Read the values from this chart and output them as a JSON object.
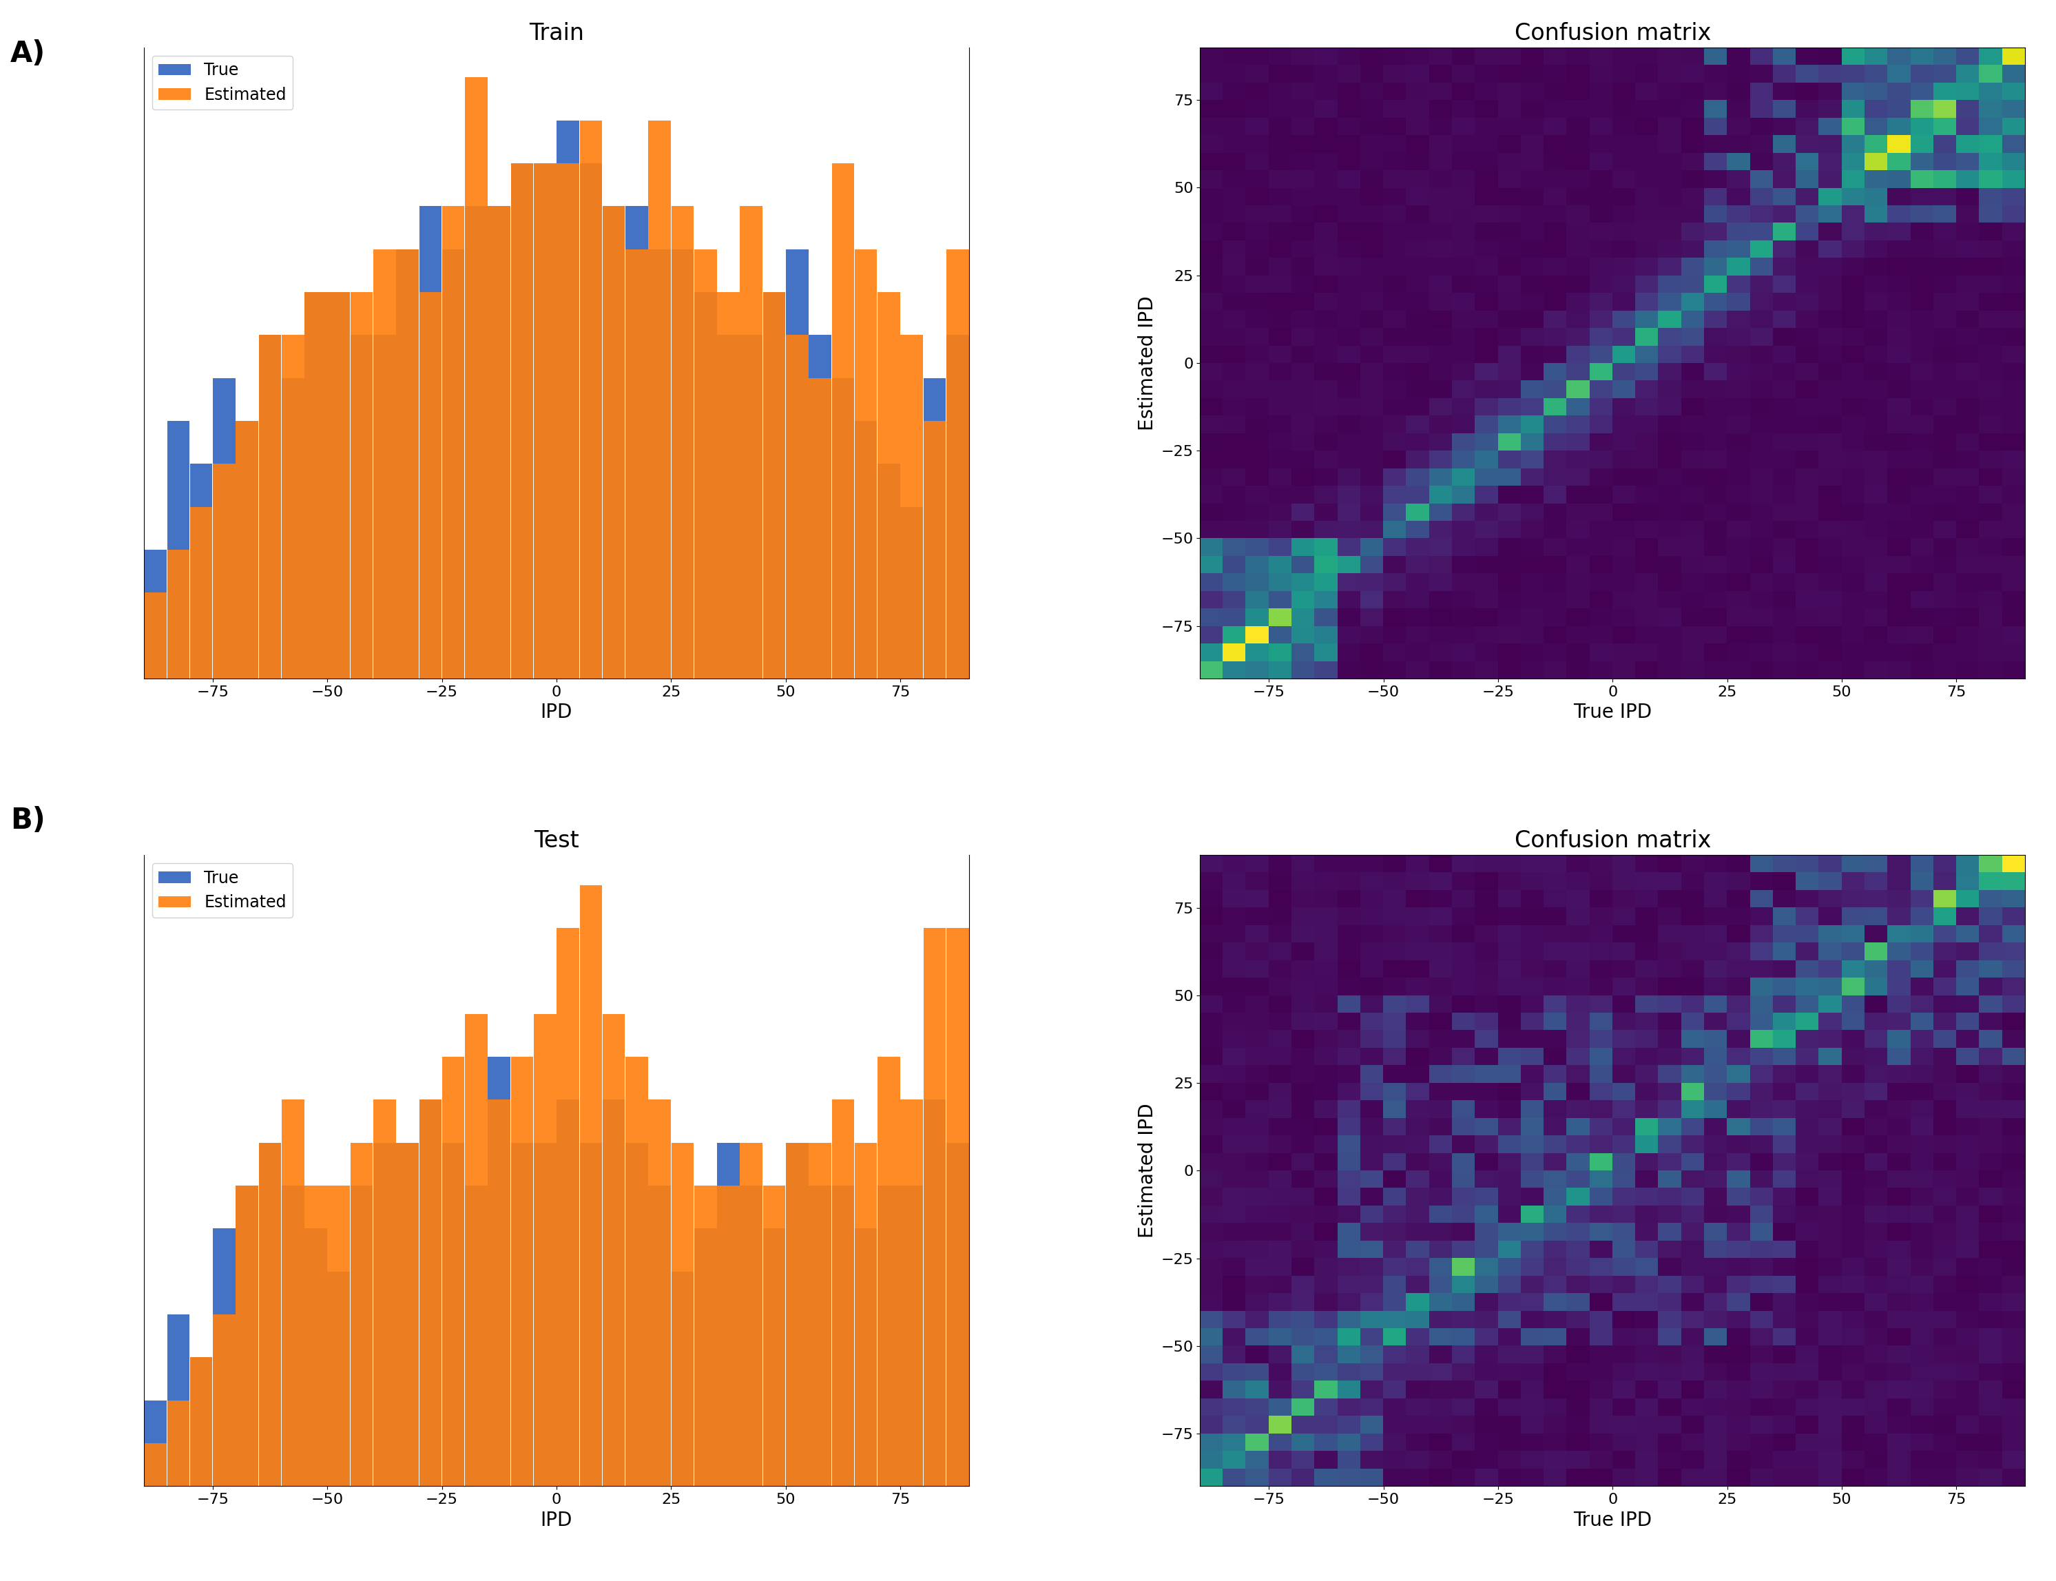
{
  "title_A": "Train",
  "title_B": "Test",
  "cm_title": "Confusion matrix",
  "xlabel_hist": "IPD",
  "ylabel_cm": "Estimated IPD",
  "xlabel_cm": "True IPD",
  "legend_true": "True",
  "legend_estimated": "Estimated",
  "label_A": "A)",
  "label_B": "B)",
  "blue_color": "#4472c4",
  "orange_color": "#ff7f0e",
  "ipd_min": -90,
  "ipd_max": 90,
  "bin_width": 5,
  "cm_colormap": "viridis",
  "cm_n": 36,
  "train_true": [
    3,
    6,
    5,
    7,
    6,
    8,
    7,
    9,
    9,
    8,
    8,
    10,
    11,
    10,
    11,
    11,
    12,
    12,
    13,
    12,
    11,
    11,
    10,
    10,
    9,
    8,
    8,
    9,
    10,
    8,
    7,
    6,
    5,
    4,
    7,
    8
  ],
  "train_est": [
    2,
    3,
    4,
    5,
    6,
    8,
    8,
    9,
    9,
    9,
    10,
    10,
    9,
    11,
    14,
    11,
    12,
    12,
    12,
    13,
    11,
    10,
    13,
    11,
    10,
    9,
    11,
    9,
    8,
    7,
    12,
    10,
    9,
    8,
    6,
    10
  ],
  "test_true": [
    2,
    4,
    3,
    6,
    7,
    8,
    7,
    6,
    5,
    7,
    8,
    8,
    9,
    8,
    7,
    10,
    8,
    8,
    9,
    8,
    9,
    8,
    7,
    5,
    6,
    8,
    7,
    6,
    8,
    7,
    7,
    6,
    7,
    7,
    9,
    8
  ],
  "test_est": [
    1,
    2,
    3,
    4,
    7,
    8,
    9,
    7,
    7,
    8,
    9,
    8,
    9,
    10,
    11,
    9,
    10,
    11,
    13,
    14,
    11,
    10,
    9,
    8,
    7,
    7,
    8,
    7,
    8,
    8,
    9,
    8,
    10,
    9,
    13,
    13
  ]
}
